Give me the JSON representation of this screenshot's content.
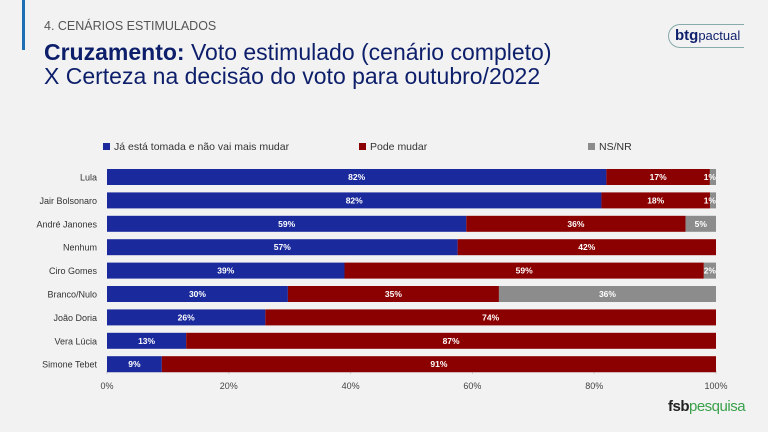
{
  "header": {
    "section": "4. CENÁRIOS ESTIMULADOS",
    "title_bold": "Cruzamento:",
    "title_rest": " Voto estimulado (cenário completo)",
    "title_line2": "X Certeza na decisão do voto para outubro/2022"
  },
  "logos": {
    "btg_bold": "btg",
    "btg_rest": "pactual",
    "fsb_bold": "fsb",
    "fsb_rest": "pesquisa"
  },
  "chart_data": {
    "type": "bar",
    "orientation": "horizontal",
    "stacked": true,
    "normalized": true,
    "categories": [
      "Lula",
      "Jair Bolsonaro",
      "André Janones",
      "Nenhum",
      "Ciro Gomes",
      "Branco/Nulo",
      "João Doria",
      "Vera Lúcia",
      "Simone Tebet"
    ],
    "series": [
      {
        "name": "Já está tomada e não vai mais mudar",
        "color": "#1a2a9c",
        "values": [
          82,
          82,
          59,
          57,
          39,
          30,
          26,
          13,
          9
        ]
      },
      {
        "name": "Pode mudar",
        "color": "#8b0000",
        "values": [
          17,
          18,
          36,
          42,
          59,
          35,
          74,
          87,
          91
        ]
      },
      {
        "name": "NS/NR",
        "color": "#8c8c8c",
        "values": [
          1,
          1,
          5,
          0,
          2,
          36,
          0,
          0,
          0
        ]
      }
    ],
    "xticks": [
      "0%",
      "20%",
      "40%",
      "60%",
      "80%",
      "100%"
    ],
    "xlim": [
      0,
      100
    ],
    "legend": "top"
  }
}
